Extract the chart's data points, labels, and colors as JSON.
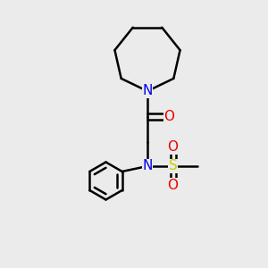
{
  "background_color": "#ebebeb",
  "atom_colors": {
    "N": "#0000ee",
    "O": "#ee0000",
    "S": "#cccc00"
  },
  "bond_color": "#000000",
  "bond_width": 1.8,
  "font_size_atom": 11
}
